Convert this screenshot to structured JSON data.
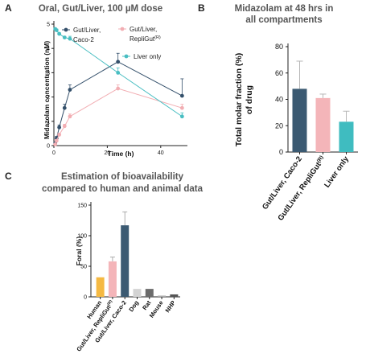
{
  "panels": {
    "a": "A",
    "b": "B",
    "c": "C"
  },
  "chart_data": [
    {
      "type": "line",
      "title": "Oral, Gut/Liver, 100 µM dose",
      "xlabel": "Time (h)",
      "ylabel": "Midazolam concentration (nM)",
      "xlim": [
        0,
        50
      ],
      "ylim": [
        0,
        5
      ],
      "xticks": [
        "0",
        "20",
        "40"
      ],
      "yticks": [
        "0",
        "1",
        "2",
        "3",
        "4",
        "5"
      ],
      "series": [
        {
          "name": "Gut/Liver, Caco-2",
          "color": "#34506b",
          "points": [
            [
              0.5,
              0.1
            ],
            [
              1,
              0.3
            ],
            [
              2,
              0.75
            ],
            [
              4,
              1.55
            ],
            [
              6,
              2.3
            ],
            [
              24,
              3.45
            ],
            [
              48,
              2.05
            ]
          ],
          "errors": [
            0.05,
            0.08,
            0.1,
            0.15,
            0.2,
            0.35,
            0.7
          ]
        },
        {
          "name": "Gut/Liver, RepliGut",
          "superscript": "(R)",
          "color": "#f2aeb3",
          "points": [
            [
              0.5,
              0.05
            ],
            [
              1,
              0.2
            ],
            [
              2,
              0.45
            ],
            [
              4,
              0.8
            ],
            [
              6,
              1.2
            ],
            [
              24,
              2.35
            ],
            [
              48,
              1.55
            ]
          ],
          "errors": [
            0.03,
            0.05,
            0.05,
            0.08,
            0.1,
            0.15,
            0.15
          ]
        },
        {
          "name": "Liver only",
          "color": "#49bec2",
          "points": [
            [
              0.5,
              4.8
            ],
            [
              1,
              4.75
            ],
            [
              2,
              4.6
            ],
            [
              4,
              4.45
            ],
            [
              6,
              4.4
            ],
            [
              24,
              3.0
            ],
            [
              48,
              1.2
            ]
          ],
          "errors": [
            0.05,
            0.05,
            0.05,
            0.05,
            0.1,
            0.2,
            0.15
          ]
        }
      ]
    },
    {
      "type": "bar",
      "title": "Midazolam at 48 hrs in all compartments",
      "ylabel": "Total molar fraction (%) of drug",
      "ylim": [
        0,
        80
      ],
      "yticks": [
        "0",
        "20",
        "40",
        "60",
        "80"
      ],
      "categories": [
        "Gut/Liver, Caco-2",
        "Gut/Liver, RepliGut",
        "Liver only"
      ],
      "category_superscripts": [
        "",
        "(R)",
        ""
      ],
      "values": [
        48,
        41,
        23
      ],
      "errors": [
        21,
        3,
        8
      ],
      "colors": [
        "#3b5a72",
        "#f4b5b9",
        "#3fbcc0"
      ]
    },
    {
      "type": "bar",
      "title": "Estimation of bioavailability compared to human and animal data",
      "ylabel": "Foral (%)",
      "ylim": [
        0,
        150
      ],
      "yticks": [
        "0",
        "50",
        "100",
        "150"
      ],
      "categories": [
        "Human",
        "Gut/Liver, RepliGut",
        "Gut/Liver, Caco-2",
        "Dog",
        "Rat",
        "Mouse",
        "NHP"
      ],
      "category_superscripts": [
        "",
        "(R)",
        "",
        "",
        "",
        "",
        ""
      ],
      "values": [
        32,
        58,
        117,
        13,
        13,
        2,
        4
      ],
      "errors": [
        0,
        7,
        22,
        0,
        0,
        0,
        0
      ],
      "colors": [
        "#f5b942",
        "#f4b5b9",
        "#3b5a72",
        "#d4d4d4",
        "#6b6b6b",
        "#aaaaaa",
        "#555555"
      ]
    }
  ]
}
